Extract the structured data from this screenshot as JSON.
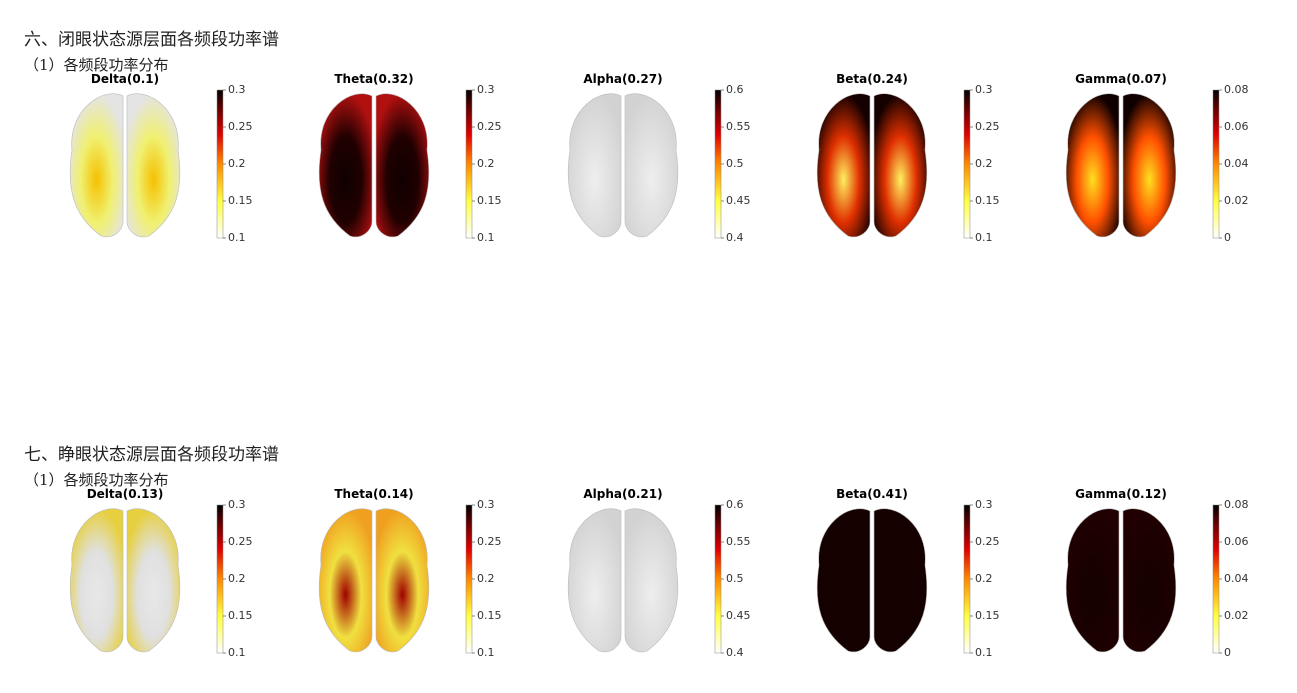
{
  "sections": [
    {
      "title": "六、闭眼状态源层面各频段功率谱",
      "subtitle": "（1）各频段功率分布",
      "panels": [
        {
          "title": "Delta(0.1)",
          "ticks": [
            0.1,
            0.15,
            0.2,
            0.25,
            0.3
          ]
        },
        {
          "title": "Theta(0.32)",
          "ticks": [
            0.1,
            0.15,
            0.2,
            0.25,
            0.3
          ]
        },
        {
          "title": "Alpha(0.27)",
          "ticks": [
            0.4,
            0.45,
            0.5,
            0.55,
            0.6
          ]
        },
        {
          "title": "Beta(0.24)",
          "ticks": [
            0.1,
            0.15,
            0.2,
            0.25,
            0.3
          ]
        },
        {
          "title": "Gamma(0.07)",
          "ticks": [
            0,
            0.02,
            0.04,
            0.06,
            0.08
          ]
        }
      ]
    },
    {
      "title": "七、睁眼状态源层面各频段功率谱",
      "subtitle": "（1）各频段功率分布",
      "panels": [
        {
          "title": "Delta(0.13)",
          "ticks": [
            0.1,
            0.15,
            0.2,
            0.25,
            0.3
          ]
        },
        {
          "title": "Theta(0.14)",
          "ticks": [
            0.1,
            0.15,
            0.2,
            0.25,
            0.3
          ]
        },
        {
          "title": "Alpha(0.21)",
          "ticks": [
            0.4,
            0.45,
            0.5,
            0.55,
            0.6
          ]
        },
        {
          "title": "Beta(0.41)",
          "ticks": [
            0.1,
            0.15,
            0.2,
            0.25,
            0.3
          ]
        },
        {
          "title": "Gamma(0.12)",
          "ticks": [
            0,
            0.02,
            0.04,
            0.06,
            0.08
          ]
        }
      ]
    }
  ]
}
